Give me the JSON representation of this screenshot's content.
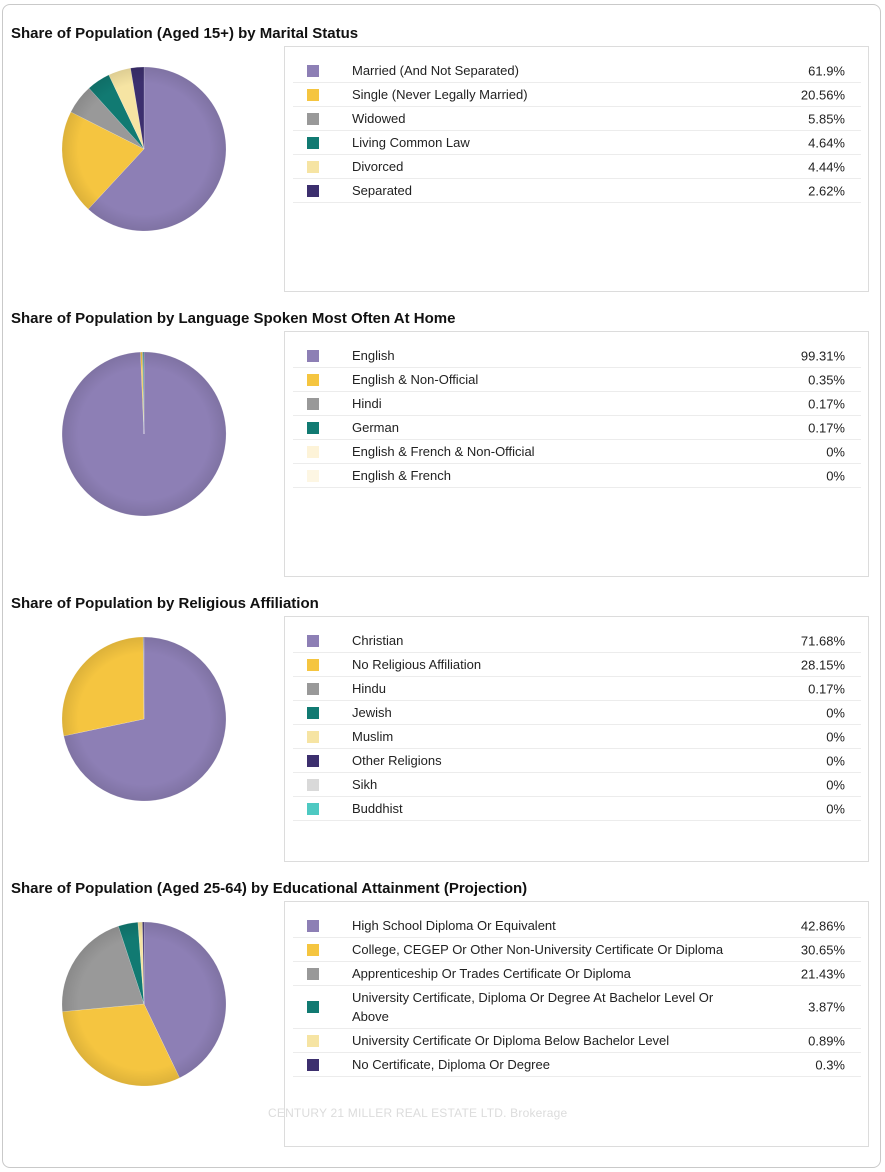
{
  "watermark": "CENTURY 21 MILLER REAL ESTATE LTD. Brokerage",
  "chart_data": [
    {
      "type": "pie",
      "title": "Share of Population (Aged 15+) by Marital Status",
      "categories": [
        "Married (And Not Separated)",
        "Single (Never Legally Married)",
        "Widowed",
        "Living Common Law",
        "Divorced",
        "Separated"
      ],
      "values": [
        61.9,
        20.56,
        5.85,
        4.64,
        4.44,
        2.62
      ],
      "value_labels": [
        "61.9%",
        "20.56%",
        "5.85%",
        "4.64%",
        "4.44%",
        "2.62%"
      ],
      "colors": [
        "#8d7fb5",
        "#f5c540",
        "#999999",
        "#117a72",
        "#f6e4a3",
        "#3c2f6e"
      ]
    },
    {
      "type": "pie",
      "title": "Share of Population by Language Spoken Most Often At Home",
      "categories": [
        "English",
        "English & Non-Official",
        "Hindi",
        "German",
        "English & French & Non-Official",
        "English & French"
      ],
      "values": [
        99.31,
        0.35,
        0.17,
        0.17,
        0,
        0
      ],
      "value_labels": [
        "99.31%",
        "0.35%",
        "0.17%",
        "0.17%",
        "0%",
        "0%"
      ],
      "colors": [
        "#8d7fb5",
        "#f5c540",
        "#999999",
        "#117a72",
        "#fdf3d8",
        "#fdf6e3"
      ]
    },
    {
      "type": "pie",
      "title": "Share of Population by Religious Affiliation",
      "categories": [
        "Christian",
        "No Religious Affiliation",
        "Hindu",
        "Jewish",
        "Muslim",
        "Other Religions",
        "Sikh",
        "Buddhist"
      ],
      "values": [
        71.68,
        28.15,
        0.17,
        0,
        0,
        0,
        0,
        0
      ],
      "value_labels": [
        "71.68%",
        "28.15%",
        "0.17%",
        "0%",
        "0%",
        "0%",
        "0%",
        "0%"
      ],
      "colors": [
        "#8d7fb5",
        "#f5c540",
        "#999999",
        "#117a72",
        "#f6e4a3",
        "#3c2f6e",
        "#d9d9d9",
        "#4ec9c2"
      ]
    },
    {
      "type": "pie",
      "title": "Share of Population (Aged 25-64) by Educational Attainment (Projection)",
      "categories": [
        "High School Diploma Or Equivalent",
        "College, CEGEP Or Other Non-University Certificate Or Diploma",
        "Apprenticeship Or Trades Certificate Or Diploma",
        "University Certificate, Diploma Or Degree At Bachelor Level Or Above",
        "University Certificate Or Diploma Below Bachelor Level",
        "No Certificate, Diploma Or Degree"
      ],
      "values": [
        42.86,
        30.65,
        21.43,
        3.87,
        0.89,
        0.3
      ],
      "value_labels": [
        "42.86%",
        "30.65%",
        "21.43%",
        "3.87%",
        "0.89%",
        "0.3%"
      ],
      "colors": [
        "#8d7fb5",
        "#f5c540",
        "#999999",
        "#117a72",
        "#f6e4a3",
        "#3c2f6e"
      ]
    }
  ]
}
